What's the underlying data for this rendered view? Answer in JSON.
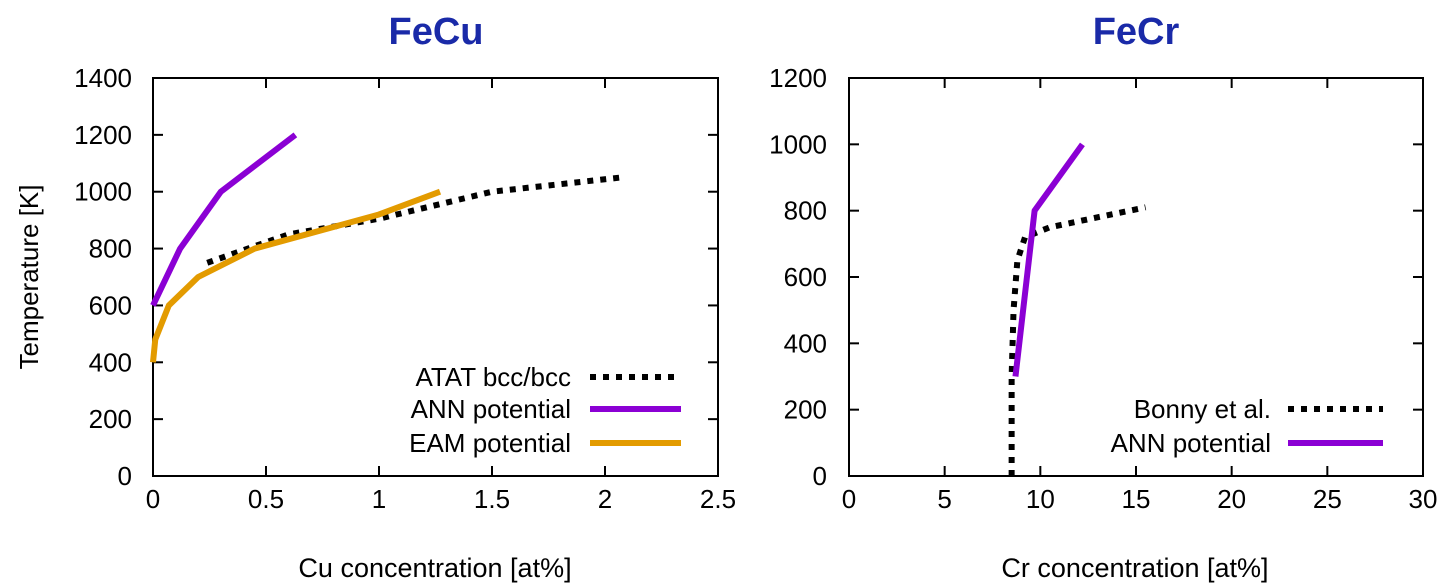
{
  "colors": {
    "title": "#1a2aa8",
    "ann": "#8b00d4",
    "eam": "#e39b00",
    "ref": "#000000"
  },
  "chart_data": [
    {
      "type": "line",
      "title": "FeCu",
      "xlabel": "Cu concentration [at%]",
      "ylabel": "Temperature [K]",
      "xlim": [
        0,
        2.5
      ],
      "ylim": [
        0,
        1400
      ],
      "xticks": [
        "0",
        "0.5",
        "1",
        "1.5",
        "2",
        "2.5"
      ],
      "yticks": [
        "0",
        "200",
        "400",
        "600",
        "800",
        "1000",
        "1200",
        "1400"
      ],
      "legend_position": "bottom-right",
      "grid": false,
      "series": [
        {
          "name": "ATAT bcc/bcc",
          "style": "dotted",
          "x": [
            0.24,
            0.6,
            1.0,
            1.5,
            2.07
          ],
          "y": [
            750,
            850,
            905,
            1000,
            1050
          ]
        },
        {
          "name": "ANN potential",
          "style": "solid",
          "x": [
            0.0,
            0.12,
            0.3,
            0.63
          ],
          "y": [
            600,
            800,
            1000,
            1200
          ]
        },
        {
          "name": "EAM potential",
          "style": "solid",
          "x": [
            0.0,
            0.01,
            0.07,
            0.2,
            0.45,
            1.0,
            1.27
          ],
          "y": [
            400,
            480,
            600,
            700,
            800,
            920,
            1000
          ]
        }
      ]
    },
    {
      "type": "line",
      "title": "FeCr",
      "xlabel": "Cr concentration [at%]",
      "ylabel": "",
      "xlim": [
        0,
        30
      ],
      "ylim": [
        0,
        1200
      ],
      "xticks": [
        "0",
        "5",
        "10",
        "15",
        "20",
        "25",
        "30"
      ],
      "yticks": [
        "0",
        "200",
        "400",
        "600",
        "800",
        "1000",
        "1200"
      ],
      "legend_position": "bottom-right",
      "grid": false,
      "series": [
        {
          "name": "Bonny et al.",
          "style": "dotted",
          "x": [
            8.5,
            8.5,
            8.6,
            8.8,
            9.2,
            10.5,
            15.5
          ],
          "y": [
            0,
            300,
            500,
            650,
            720,
            750,
            810
          ]
        },
        {
          "name": "ANN potential",
          "style": "solid",
          "x": [
            8.7,
            9.7,
            12.2
          ],
          "y": [
            300,
            800,
            1000
          ]
        }
      ]
    }
  ]
}
